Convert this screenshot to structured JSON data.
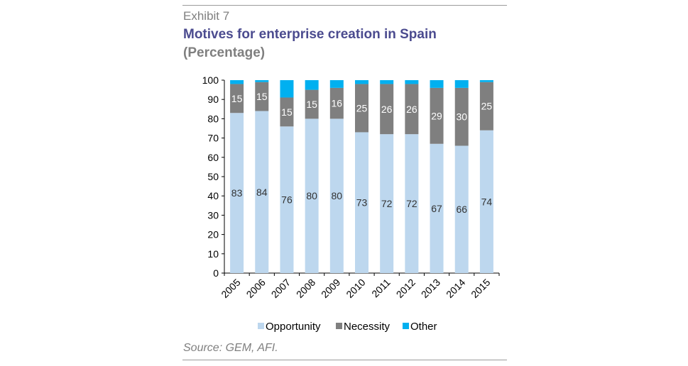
{
  "header": {
    "exhibit": "Exhibit 7",
    "title": "Motives for enterprise creation in Spain",
    "subtitle": "(Percentage)"
  },
  "footer": {
    "source": "Source: GEM, AFI."
  },
  "chart_data": {
    "type": "bar",
    "stacked": true,
    "categories": [
      "2005",
      "2006",
      "2007",
      "2008",
      "2009",
      "2010",
      "2011",
      "2012",
      "2013",
      "2014",
      "2015"
    ],
    "series": [
      {
        "name": "Opportunity",
        "color": "#bdd7ee",
        "values": [
          83,
          84,
          76,
          80,
          80,
          73,
          72,
          72,
          67,
          66,
          74
        ]
      },
      {
        "name": "Necessity",
        "color": "#7f7f7f",
        "values": [
          15,
          15,
          15,
          15,
          16,
          25,
          26,
          26,
          29,
          30,
          25
        ]
      },
      {
        "name": "Other",
        "color": "#00b0f0",
        "values": [
          2,
          1,
          9,
          5,
          4,
          2,
          2,
          2,
          4,
          4,
          1
        ]
      }
    ],
    "data_labels": {
      "Opportunity": [
        "83",
        "84",
        "76",
        "80",
        "80",
        "73",
        "72",
        "72",
        "67",
        "66",
        "74"
      ],
      "Necessity": [
        "15",
        "15",
        "15",
        "15",
        "16",
        "25",
        "26",
        "26",
        "29",
        "30",
        "25"
      ]
    },
    "ylim": [
      0,
      100
    ],
    "yticks": [
      0,
      10,
      20,
      30,
      40,
      50,
      60,
      70,
      80,
      90,
      100
    ],
    "legend": "bottom",
    "grid": false
  }
}
